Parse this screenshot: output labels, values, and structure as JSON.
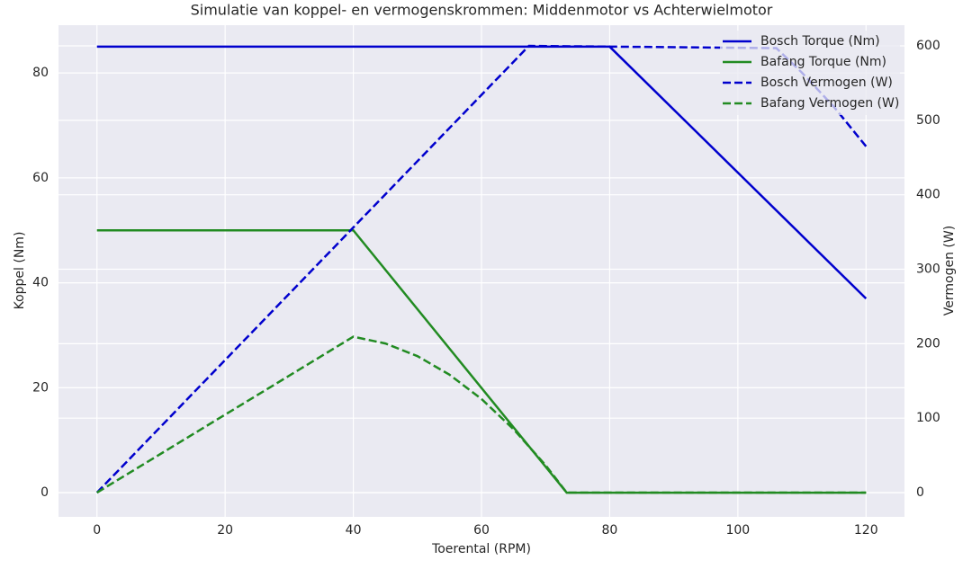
{
  "chart_data": {
    "type": "line",
    "title": "Simulatie van koppel- en vermogenskrommen: Middenmotor vs Achterwielmotor",
    "xlabel": "Toerental (RPM)",
    "ylabel": "Koppel (Nm)",
    "y2label": "Vermogen (W)",
    "xlim": [
      -6,
      126
    ],
    "xticks": [
      0,
      20,
      40,
      60,
      80,
      100,
      120
    ],
    "ylim": [
      -4.6,
      89.1
    ],
    "yticks": [
      0,
      20,
      40,
      60,
      80
    ],
    "y2lim": [
      -32.6,
      627.8
    ],
    "y2ticks": [
      0,
      100,
      200,
      300,
      400,
      500,
      600
    ],
    "grid": true,
    "legend": "upper right",
    "series": [
      {
        "name": "Bosch Torque (Nm)",
        "color": "#0000cd",
        "dash": false,
        "x": [
          0,
          80,
          120
        ],
        "values": [
          85,
          85,
          37
        ]
      },
      {
        "name": "Bafang Torque (Nm)",
        "color": "#228b22",
        "dash": false,
        "x": [
          0,
          40,
          73.3,
          120
        ],
        "values": [
          50,
          50,
          0,
          0
        ]
      },
      {
        "name": "Bosch Vermogen (W)",
        "color": "#0000cd",
        "dash": true,
        "axis": "y2",
        "x": [
          0,
          67.4,
          106,
          110,
          115,
          120
        ],
        "values": [
          0,
          600,
          597,
          564,
          518,
          465
        ]
      },
      {
        "name": "Bafang Vermogen (W)",
        "color": "#228b22",
        "dash": true,
        "axis": "y2",
        "x": [
          0,
          40,
          45,
          50,
          55,
          60,
          65,
          70,
          73.3,
          120
        ],
        "values": [
          0,
          209.4,
          200.3,
          183.3,
          158.4,
          125.7,
          85.1,
          36.7,
          0,
          0
        ]
      }
    ]
  }
}
